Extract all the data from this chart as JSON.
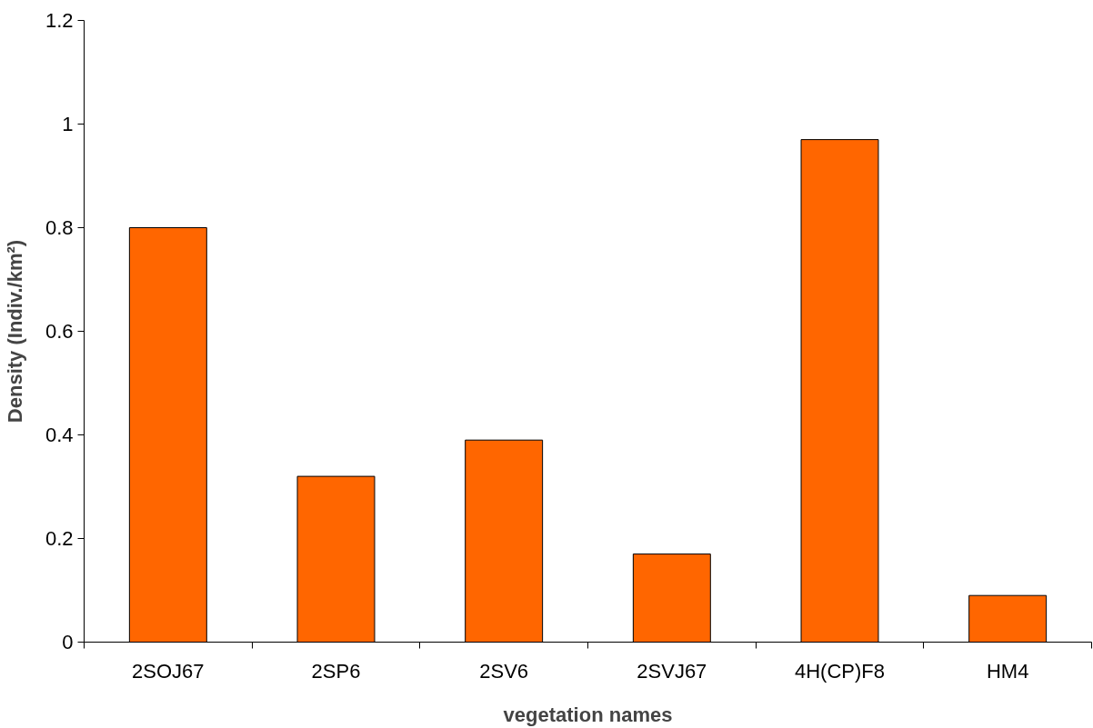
{
  "chart_data": {
    "type": "bar",
    "xlabel": "vegetation names",
    "ylabel": "Density (Indiv./km²)",
    "categories": [
      "2SOJ67",
      "2SP6",
      "2SV6",
      "2SVJ67",
      "4H(CP)F8",
      "HM4"
    ],
    "values": [
      0.8,
      0.32,
      0.39,
      0.17,
      0.97,
      0.09
    ],
    "color": "#ff6600",
    "ylim": [
      0,
      1.2
    ],
    "yticks": [
      0,
      0.2,
      0.4,
      0.6,
      0.8,
      1,
      1.2
    ],
    "grid": false
  }
}
